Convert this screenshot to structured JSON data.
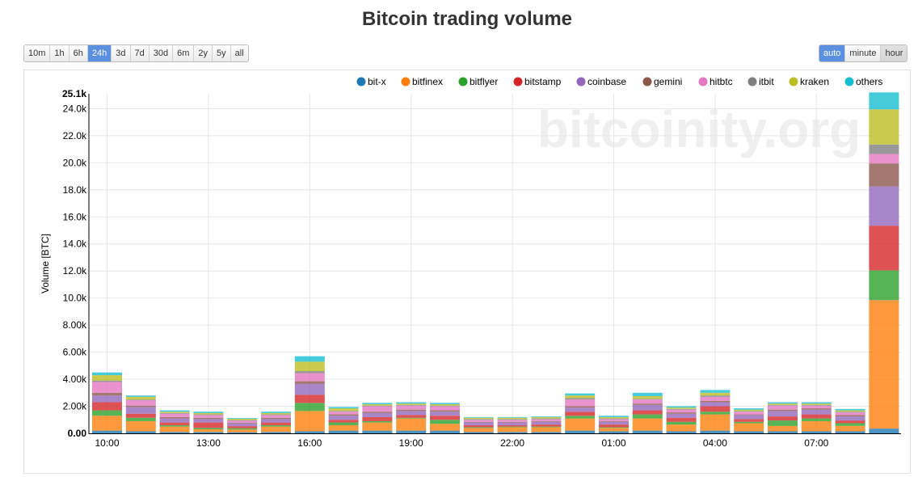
{
  "page": {
    "title": "Bitcoin trading volume"
  },
  "range_buttons": [
    {
      "label": "10m",
      "active": false
    },
    {
      "label": "1h",
      "active": false
    },
    {
      "label": "6h",
      "active": false
    },
    {
      "label": "24h",
      "active": true
    },
    {
      "label": "3d",
      "active": false
    },
    {
      "label": "7d",
      "active": false
    },
    {
      "label": "30d",
      "active": false
    },
    {
      "label": "6m",
      "active": false
    },
    {
      "label": "2y",
      "active": false
    },
    {
      "label": "5y",
      "active": false
    },
    {
      "label": "all",
      "active": false
    }
  ],
  "resolution_buttons": [
    {
      "label": "auto",
      "active": true
    },
    {
      "label": "minute",
      "active": false
    },
    {
      "label": "hour",
      "active": false,
      "pressed": true
    }
  ],
  "watermark": "bitcoinity.org",
  "chart_data": {
    "type": "bar",
    "stacked": true,
    "ylabel": "Volume [BTC]",
    "xlabel": "",
    "ylim": [
      0,
      25.1
    ],
    "y_unit": "k",
    "y_ticks": [
      "0.00",
      "2.00k",
      "4.00k",
      "6.00k",
      "8.00k",
      "10.0k",
      "12.0k",
      "14.0k",
      "16.0k",
      "18.0k",
      "20.0k",
      "22.0k",
      "24.0k"
    ],
    "y_max_label": "25.1k",
    "x_tick_labels": [
      "10:00",
      "13:00",
      "16:00",
      "19:00",
      "22:00",
      "01:00",
      "04:00",
      "07:00"
    ],
    "legend_placement": "top-right",
    "grid": true,
    "series": [
      {
        "name": "bit-x",
        "color": "#1f77b4",
        "values": [
          0.2,
          0.15,
          0.1,
          0.1,
          0.08,
          0.1,
          0.15,
          0.2,
          0.2,
          0.2,
          0.2,
          0.1,
          0.1,
          0.1,
          0.2,
          0.15,
          0.2,
          0.15,
          0.2,
          0.15,
          0.15,
          0.15,
          0.15,
          0.35
        ]
      },
      {
        "name": "bitfinex",
        "color": "#ff7f0e",
        "values": [
          1.1,
          0.75,
          0.4,
          0.2,
          0.2,
          0.4,
          1.5,
          0.4,
          0.6,
          0.9,
          0.5,
          0.3,
          0.35,
          0.35,
          0.9,
          0.25,
          0.9,
          0.5,
          1.2,
          0.6,
          0.4,
          0.75,
          0.4,
          9.5
        ]
      },
      {
        "name": "bitflyer",
        "color": "#2ca02c",
        "values": [
          0.4,
          0.25,
          0.1,
          0.1,
          0.1,
          0.1,
          0.6,
          0.2,
          0.1,
          0.05,
          0.3,
          0.05,
          0.05,
          0.05,
          0.2,
          0.05,
          0.3,
          0.2,
          0.2,
          0.1,
          0.4,
          0.2,
          0.2,
          2.2
        ]
      },
      {
        "name": "bitstamp",
        "color": "#d62728",
        "values": [
          0.6,
          0.3,
          0.2,
          0.4,
          0.15,
          0.2,
          0.6,
          0.2,
          0.3,
          0.2,
          0.3,
          0.15,
          0.1,
          0.15,
          0.3,
          0.2,
          0.3,
          0.3,
          0.4,
          0.2,
          0.3,
          0.3,
          0.2,
          3.3
        ]
      },
      {
        "name": "coinbase",
        "color": "#9467bd",
        "values": [
          0.5,
          0.5,
          0.3,
          0.25,
          0.2,
          0.25,
          0.8,
          0.3,
          0.3,
          0.3,
          0.3,
          0.2,
          0.2,
          0.2,
          0.3,
          0.2,
          0.4,
          0.3,
          0.3,
          0.3,
          0.4,
          0.35,
          0.3,
          2.9
        ]
      },
      {
        "name": "gemini",
        "color": "#8c564b",
        "values": [
          0.2,
          0.1,
          0.1,
          0.1,
          0.05,
          0.1,
          0.2,
          0.1,
          0.1,
          0.1,
          0.1,
          0.05,
          0.05,
          0.05,
          0.1,
          0.05,
          0.1,
          0.1,
          0.1,
          0.05,
          0.1,
          0.1,
          0.1,
          1.7
        ]
      },
      {
        "name": "hitbtc",
        "color": "#e377c2",
        "values": [
          0.8,
          0.4,
          0.25,
          0.2,
          0.15,
          0.2,
          0.6,
          0.2,
          0.4,
          0.3,
          0.3,
          0.15,
          0.15,
          0.15,
          0.5,
          0.15,
          0.3,
          0.2,
          0.3,
          0.2,
          0.3,
          0.2,
          0.2,
          0.7
        ]
      },
      {
        "name": "itbit",
        "color": "#7f7f7f",
        "values": [
          0.1,
          0.05,
          0.05,
          0.05,
          0.05,
          0.05,
          0.15,
          0.05,
          0.05,
          0.05,
          0.05,
          0.05,
          0.05,
          0.05,
          0.1,
          0.05,
          0.05,
          0.05,
          0.1,
          0.05,
          0.05,
          0.05,
          0.05,
          0.7
        ]
      },
      {
        "name": "kraken",
        "color": "#bcbd22",
        "values": [
          0.4,
          0.2,
          0.1,
          0.1,
          0.1,
          0.1,
          0.7,
          0.2,
          0.1,
          0.1,
          0.1,
          0.1,
          0.1,
          0.1,
          0.2,
          0.1,
          0.2,
          0.1,
          0.2,
          0.1,
          0.1,
          0.1,
          0.1,
          2.6
        ]
      },
      {
        "name": "others",
        "color": "#17becf",
        "values": [
          0.2,
          0.1,
          0.1,
          0.1,
          0.05,
          0.1,
          0.4,
          0.1,
          0.1,
          0.1,
          0.1,
          0.05,
          0.05,
          0.05,
          0.15,
          0.1,
          0.25,
          0.1,
          0.2,
          0.1,
          0.1,
          0.1,
          0.1,
          1.25
        ]
      }
    ]
  }
}
